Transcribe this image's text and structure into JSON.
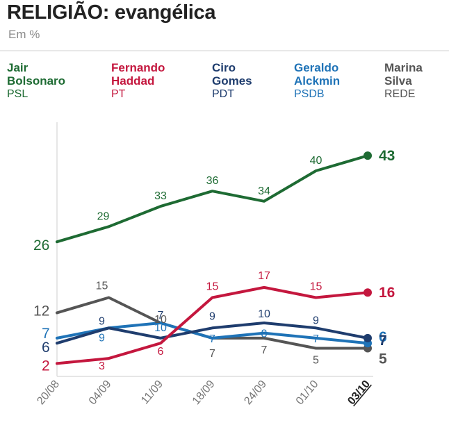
{
  "header": {
    "title": "RELIGIÃO: evangélica",
    "subtitle": "Em %"
  },
  "legend": [
    {
      "name_line1": "Jair",
      "name_line2": "Bolsonaro",
      "party": "PSL",
      "color": "#1e6b33"
    },
    {
      "name_line1": "Fernando",
      "name_line2": "Haddad",
      "party": "PT",
      "color": "#c4173e"
    },
    {
      "name_line1": "Ciro",
      "name_line2": "Gomes",
      "party": "PDT",
      "color": "#1f3d6e"
    },
    {
      "name_line1": "Geraldo",
      "name_line2": "Alckmin",
      "party": "PSDB",
      "color": "#1f73b7"
    },
    {
      "name_line1": "Marina",
      "name_line2": "Silva",
      "party": "REDE",
      "color": "#555555"
    }
  ],
  "chart_data": {
    "type": "line",
    "title": "RELIGIÃO: evangélica",
    "subtitle": "Em %",
    "xlabel": "",
    "ylabel": "",
    "x": [
      "20/08",
      "04/09",
      "11/09",
      "18/09",
      "24/09",
      "01/10",
      "03/10"
    ],
    "ylim": [
      0,
      50
    ],
    "grid": false,
    "legend_position": "top",
    "series": [
      {
        "name": "Jair Bolsonaro",
        "party": "PSL",
        "color": "#1e6b33",
        "values": [
          26,
          29,
          33,
          36,
          34,
          40,
          43
        ],
        "labels": [
          "26",
          "29",
          "33",
          "36",
          "34",
          "40",
          "43"
        ]
      },
      {
        "name": "Fernando Haddad",
        "party": "PT",
        "color": "#c4173e",
        "values": [
          2,
          3,
          6,
          15,
          17,
          15,
          16
        ],
        "labels": [
          "2",
          "3",
          "6",
          "15",
          "17",
          "15",
          "16"
        ]
      },
      {
        "name": "Ciro Gomes",
        "party": "PDT",
        "color": "#1f3d6e",
        "values": [
          6,
          9,
          7,
          9,
          10,
          9,
          7
        ],
        "labels": [
          "6",
          "9",
          "7",
          "9",
          "10",
          "9",
          "7"
        ]
      },
      {
        "name": "Geraldo Alckmin",
        "party": "PSDB",
        "color": "#1f73b7",
        "values": [
          7,
          9,
          10,
          7,
          8,
          7,
          6
        ],
        "labels": [
          "7",
          "9",
          "10",
          "7",
          "8",
          "7",
          "6"
        ]
      },
      {
        "name": "Marina Silva",
        "party": "REDE",
        "color": "#555555",
        "values": [
          12,
          15,
          10,
          7,
          7,
          5,
          5
        ],
        "labels": [
          "12",
          "15",
          "10",
          "7",
          "7",
          "5",
          "5"
        ]
      }
    ]
  }
}
